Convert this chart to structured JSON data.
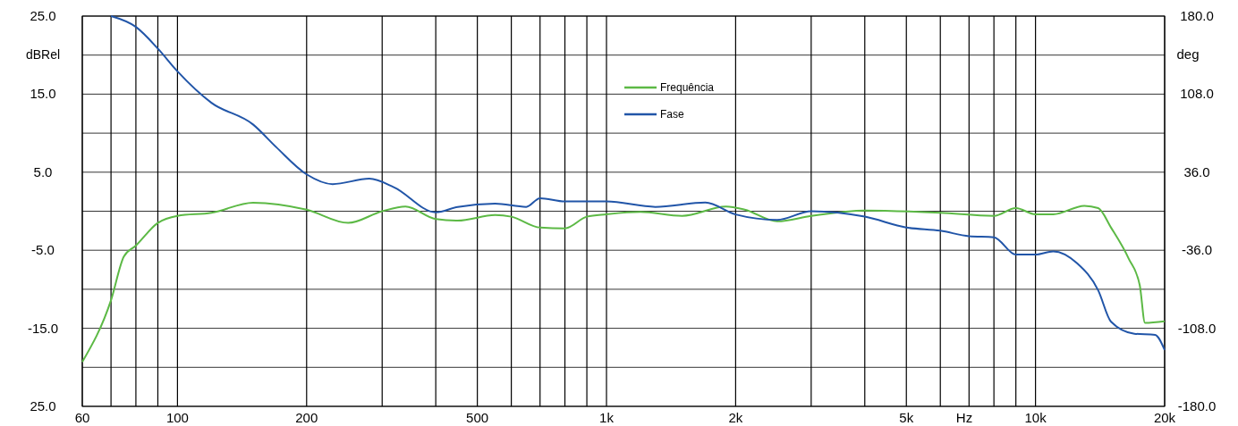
{
  "chart_data": {
    "type": "line",
    "xlabel": "Hz",
    "ylabel": "dBRel",
    "y2label": "deg",
    "log": "x",
    "grid": true,
    "legend": "top",
    "xlim": [
      60,
      20000
    ],
    "xticks": [
      60,
      {
        "value": 70,
        "label": null
      },
      {
        "value": 80,
        "label": null
      },
      {
        "value": 90,
        "label": null
      },
      100,
      200,
      {
        "value": 300,
        "label": null
      },
      {
        "value": 400,
        "label": null
      },
      500,
      {
        "value": 600,
        "label": null
      },
      {
        "value": 700,
        "label": null
      },
      {
        "value": 800,
        "label": null
      },
      {
        "value": 900,
        "label": null
      },
      {
        "value": 1000,
        "label": "1k"
      },
      {
        "value": 2000,
        "label": "2k"
      },
      {
        "value": 3000,
        "label": null
      },
      {
        "value": 4000,
        "label": null
      },
      {
        "value": 5000,
        "label": "5k"
      },
      {
        "value": 6000,
        "label": null
      },
      {
        "value": 7000,
        "label": null
      },
      {
        "value": 8000,
        "label": null
      },
      {
        "value": 9000,
        "label": null
      },
      {
        "value": 10000,
        "label": "10k"
      },
      {
        "value": 20000,
        "label": "20k"
      }
    ],
    "ylim": [
      -25,
      25
    ],
    "yticks": [
      {
        "value": 25,
        "label": "25.0"
      },
      {
        "value": 20,
        "label": null
      },
      {
        "value": 15,
        "label": "15.0"
      },
      {
        "value": 10,
        "label": null
      },
      {
        "value": 5,
        "label": "5.0"
      },
      {
        "value": 0,
        "label": null
      },
      {
        "value": -5,
        "label": "-5.0"
      },
      {
        "value": -10,
        "label": null
      },
      {
        "value": -15,
        "label": "-15.0"
      },
      {
        "value": -20,
        "label": null
      },
      {
        "value": -25,
        "label": "25.0"
      }
    ],
    "y2lim": [
      -180,
      180
    ],
    "y2ticks": [
      {
        "value": 180,
        "label": "180.0"
      },
      {
        "value": 108,
        "label": "108.0"
      },
      {
        "value": 36,
        "label": "36.0"
      },
      {
        "value": -36,
        "label": "-36.0"
      },
      {
        "value": -108,
        "label": "-108.0"
      },
      {
        "value": -180,
        "label": "-180.0"
      }
    ],
    "series": [
      {
        "name": "Frequência",
        "color": "#5cb945",
        "x": [
          60,
          70,
          75,
          80,
          90,
          100,
          120,
          150,
          200,
          250,
          300,
          340,
          400,
          450,
          550,
          600,
          700,
          800,
          900,
          1000,
          1200,
          1500,
          1900,
          2100,
          2500,
          3000,
          4000,
          6000,
          8000,
          9000,
          10000,
          11000,
          13000,
          14000,
          15000,
          16500,
          17500,
          18000,
          20000
        ],
        "values": [
          -19.3,
          -11.4,
          -5.8,
          -4.4,
          -1.5,
          -0.6,
          -0.2,
          1.1,
          0.2,
          -1.5,
          0,
          0.6,
          -1,
          -1.2,
          -0.5,
          -0.7,
          -2.1,
          -2.2,
          -0.7,
          -0.4,
          -0.1,
          -0.6,
          0.6,
          0.2,
          -1.3,
          -0.6,
          0.1,
          -0.2,
          -0.6,
          0.4,
          -0.4,
          -0.4,
          0.7,
          0.4,
          -2.1,
          -6.1,
          -9.5,
          -14.3,
          -14.1
        ]
      },
      {
        "name": "Fase",
        "color": "#2155a8",
        "axis": "y2",
        "x": [
          70,
          80,
          90,
          100,
          120,
          150,
          170,
          200,
          230,
          280,
          320,
          400,
          450,
          550,
          650,
          700,
          800,
          1000,
          1300,
          1700,
          2000,
          2500,
          3000,
          4000,
          5000,
          6000,
          7000,
          8000,
          9000,
          10000,
          11000,
          12500,
          14000,
          15000,
          17000,
          19000,
          20000
        ],
        "values": [
          180,
          170,
          150,
          129,
          100,
          80,
          59,
          34,
          25,
          30,
          22,
          -1,
          4,
          7,
          4,
          12,
          9,
          9,
          4,
          8,
          -3,
          -8,
          0,
          -5,
          -15,
          -18,
          -23,
          -24,
          -40,
          -40,
          -37,
          -48,
          -73,
          -102,
          -113,
          -114,
          -128
        ]
      }
    ]
  }
}
